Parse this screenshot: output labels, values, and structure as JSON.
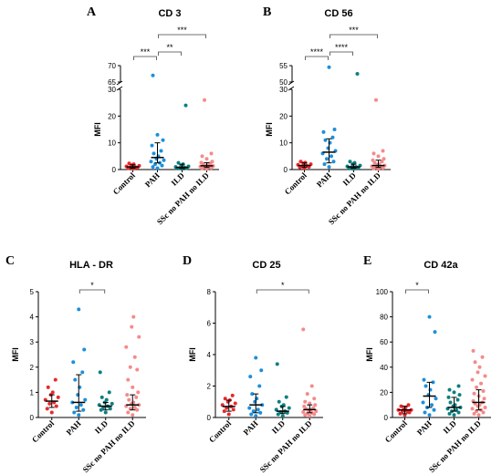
{
  "categories": [
    "Control",
    "PAH",
    "ILD",
    "SSc no PAH no ILD"
  ],
  "colors": [
    "#e8292c",
    "#1c8fdb",
    "#0e7f7f",
    "#f58a8a"
  ],
  "chart_data": [
    {
      "id": "A",
      "type": "scatter",
      "title": "CD 3",
      "ylabel": "MFI",
      "categories": [
        "Control",
        "PAH",
        "ILD",
        "SSc no PAH no ILD"
      ],
      "broken_axis": true,
      "ylim_lower": [
        0,
        30
      ],
      "ylim_upper": [
        65,
        70
      ],
      "yticks_lower": [
        0,
        10,
        20,
        30
      ],
      "yticks_upper": [
        65,
        70
      ],
      "series": [
        {
          "points": [
            0.3,
            0.5,
            0.7,
            0.9,
            1.0,
            1.2,
            1.4,
            1.6,
            2.0,
            2.3
          ],
          "median": 1.0,
          "err": [
            0.5,
            1.8
          ]
        },
        {
          "points": [
            0.5,
            1.0,
            1.5,
            2.0,
            2.5,
            3.0,
            3.5,
            4.0,
            5.0,
            6.0,
            7.0,
            9.0,
            11.0,
            13.0,
            67.0
          ],
          "median": 4.5,
          "err": [
            2.5,
            10.0
          ]
        },
        {
          "points": [
            0.2,
            0.4,
            0.5,
            0.6,
            0.8,
            1.0,
            1.2,
            1.5,
            2.0,
            2.5,
            24.0
          ],
          "median": 0.8,
          "err": [
            0.4,
            2.0
          ]
        },
        {
          "points": [
            0.2,
            0.4,
            0.6,
            0.8,
            1.0,
            1.1,
            1.3,
            1.5,
            1.7,
            2.0,
            2.3,
            2.6,
            3.0,
            4.0,
            5.0,
            6.0,
            26.0
          ],
          "median": 1.4,
          "err": [
            0.8,
            2.6
          ]
        }
      ],
      "brackets": [
        {
          "from": 0,
          "to": 1,
          "label": "***"
        },
        {
          "from": 1,
          "to": 2,
          "label": "**"
        },
        {
          "from": 1,
          "to": 3,
          "label": "***"
        }
      ]
    },
    {
      "id": "B",
      "type": "scatter",
      "title": "CD 56",
      "ylabel": "MFI",
      "categories": [
        "Control",
        "PAH",
        "ILD",
        "SSc no PAH no ILD"
      ],
      "broken_axis": true,
      "ylim_lower": [
        0,
        30
      ],
      "ylim_upper": [
        50,
        55
      ],
      "yticks_lower": [
        0,
        10,
        20,
        30
      ],
      "yticks_upper": [
        50,
        55
      ],
      "series": [
        {
          "points": [
            0.5,
            0.8,
            1.0,
            1.2,
            1.5,
            1.8,
            2.0,
            2.3,
            2.6,
            3.0
          ],
          "median": 1.5,
          "err": [
            0.8,
            2.5
          ]
        },
        {
          "points": [
            1.0,
            2.0,
            3.0,
            4.0,
            5.0,
            6.0,
            7.0,
            8.0,
            10.0,
            11.0,
            12.0,
            14.0,
            15.0,
            54.5
          ],
          "median": 6.5,
          "err": [
            2.5,
            11.5
          ]
        },
        {
          "points": [
            0.2,
            0.4,
            0.6,
            0.8,
            1.0,
            1.2,
            1.5,
            2.0,
            2.5,
            3.0,
            52.5
          ],
          "median": 1.0,
          "err": [
            0.5,
            2.0
          ]
        },
        {
          "points": [
            0.2,
            0.4,
            0.6,
            0.8,
            1.0,
            1.2,
            1.5,
            1.8,
            2.0,
            2.5,
            3.0,
            3.5,
            4.0,
            5.0,
            6.0,
            7.0,
            26.0
          ],
          "median": 1.5,
          "err": [
            0.8,
            3.5
          ]
        }
      ],
      "brackets": [
        {
          "from": 0,
          "to": 1,
          "label": "****"
        },
        {
          "from": 1,
          "to": 2,
          "label": "****"
        },
        {
          "from": 1,
          "to": 3,
          "label": "***"
        }
      ]
    },
    {
      "id": "C",
      "type": "scatter",
      "title": "HLA - DR",
      "ylabel": "MFI",
      "categories": [
        "Control",
        "PAH",
        "ILD",
        "SSc no PAH no ILD"
      ],
      "broken_axis": false,
      "ylim": [
        0,
        5
      ],
      "yticks": [
        0,
        1,
        2,
        3,
        4,
        5
      ],
      "series": [
        {
          "points": [
            0.2,
            0.35,
            0.45,
            0.55,
            0.6,
            0.7,
            0.8,
            0.9,
            1.0,
            1.2,
            1.5
          ],
          "median": 0.65,
          "err": [
            0.4,
            0.9
          ]
        },
        {
          "points": [
            0.1,
            0.2,
            0.3,
            0.4,
            0.5,
            0.6,
            0.7,
            0.9,
            1.2,
            1.5,
            1.8,
            2.2,
            2.7,
            4.3
          ],
          "median": 0.6,
          "err": [
            0.25,
            1.7
          ]
        },
        {
          "points": [
            0.2,
            0.3,
            0.35,
            0.4,
            0.45,
            0.5,
            0.55,
            0.6,
            0.7,
            0.8,
            1.0,
            1.8
          ],
          "median": 0.45,
          "err": [
            0.3,
            0.6
          ]
        },
        {
          "points": [
            0.1,
            0.2,
            0.3,
            0.35,
            0.4,
            0.45,
            0.5,
            0.55,
            0.6,
            0.7,
            0.8,
            0.9,
            1.0,
            1.2,
            1.5,
            1.9,
            2.0,
            2.4,
            2.8,
            3.2,
            3.6,
            4.0
          ],
          "median": 0.5,
          "err": [
            0.3,
            0.9
          ]
        }
      ],
      "brackets": [
        {
          "from": 1,
          "to": 2,
          "label": "*"
        }
      ]
    },
    {
      "id": "D",
      "type": "scatter",
      "title": "CD 25",
      "ylabel": "MFI",
      "categories": [
        "Control",
        "PAH",
        "ILD",
        "SSc no PAH no ILD"
      ],
      "broken_axis": false,
      "ylim": [
        0,
        8
      ],
      "yticks": [
        0,
        2,
        4,
        6,
        8
      ],
      "series": [
        {
          "points": [
            0.2,
            0.4,
            0.5,
            0.6,
            0.7,
            0.8,
            0.9,
            1.0,
            1.1,
            1.2,
            1.4
          ],
          "median": 0.7,
          "err": [
            0.4,
            1.1
          ]
        },
        {
          "points": [
            0.1,
            0.2,
            0.3,
            0.4,
            0.5,
            0.6,
            0.8,
            1.0,
            1.2,
            1.5,
            2.0,
            2.6,
            3.0,
            3.8
          ],
          "median": 0.8,
          "err": [
            0.3,
            1.5
          ]
        },
        {
          "points": [
            0.1,
            0.2,
            0.3,
            0.35,
            0.4,
            0.5,
            0.6,
            0.7,
            0.8,
            1.0,
            1.3,
            3.4
          ],
          "median": 0.4,
          "err": [
            0.25,
            0.7
          ]
        },
        {
          "points": [
            0.1,
            0.15,
            0.2,
            0.25,
            0.3,
            0.35,
            0.4,
            0.45,
            0.5,
            0.55,
            0.6,
            0.7,
            0.8,
            0.9,
            1.0,
            1.2,
            1.5,
            2.0,
            5.6
          ],
          "median": 0.5,
          "err": [
            0.3,
            0.8
          ]
        }
      ],
      "brackets": [
        {
          "from": 1,
          "to": 3,
          "label": "*"
        }
      ]
    },
    {
      "id": "E",
      "type": "scatter",
      "title": "CD 42a",
      "ylabel": "MFI",
      "categories": [
        "Control",
        "PAH",
        "ILD",
        "SSc no PAH no ILD"
      ],
      "broken_axis": false,
      "ylim": [
        0,
        100
      ],
      "yticks": [
        0,
        20,
        40,
        60,
        80,
        100
      ],
      "series": [
        {
          "points": [
            2,
            3,
            4,
            5,
            5,
            6,
            6,
            7,
            8,
            9,
            10
          ],
          "median": 6,
          "err": [
            3,
            9
          ]
        },
        {
          "points": [
            2,
            4,
            6,
            8,
            10,
            12,
            15,
            18,
            22,
            25,
            28,
            30,
            68,
            80
          ],
          "median": 17,
          "err": [
            8,
            28
          ]
        },
        {
          "points": [
            2,
            3,
            4,
            5,
            6,
            7,
            8,
            9,
            10,
            12,
            14,
            16,
            18,
            20,
            22,
            25
          ],
          "median": 8,
          "err": [
            5,
            16
          ]
        },
        {
          "points": [
            2,
            3,
            4,
            5,
            6,
            7,
            8,
            9,
            10,
            11,
            12,
            13,
            15,
            17,
            19,
            21,
            24,
            27,
            30,
            33,
            36,
            40,
            44,
            48,
            53
          ],
          "median": 12,
          "err": [
            6,
            22
          ]
        }
      ],
      "brackets": [
        {
          "from": 0,
          "to": 1,
          "label": "*"
        }
      ]
    }
  ]
}
